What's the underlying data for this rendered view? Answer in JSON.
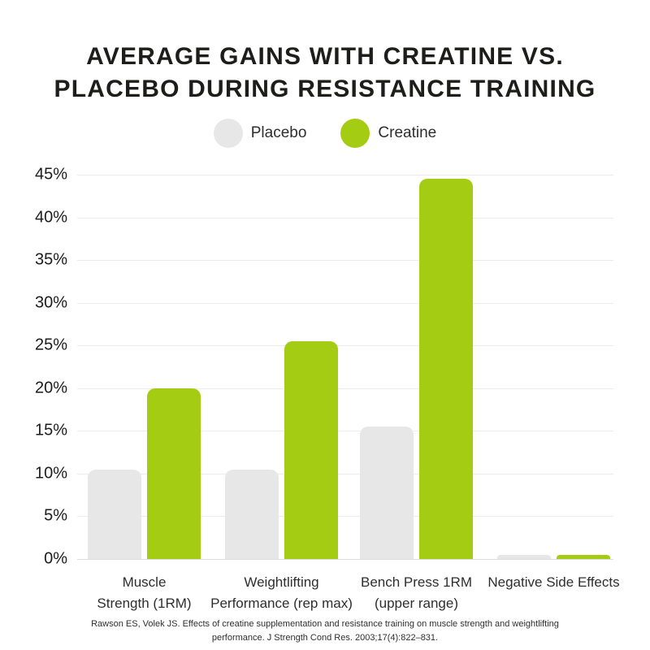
{
  "page": {
    "title": "AVERAGE GAINS WITH CREATINE VS. PLACEBO DURING RESISTANCE TRAINING",
    "citation": "Rawson ES, Volek JS. Effects of creatine supplementation and resistance training on muscle strength and weightlifting performance. J Strength Cond Res. 2003;17(4):822–831."
  },
  "legend": {
    "items": [
      {
        "label": "Placebo",
        "color": "#e7e7e7"
      },
      {
        "label": "Creatine",
        "color": "#a4cc12"
      }
    ]
  },
  "chart_data": {
    "type": "bar",
    "title": "AVERAGE GAINS WITH CREATINE VS. PLACEBO DURING RESISTANCE TRAINING",
    "categories": [
      "Muscle Strength (1RM)",
      "Weightlifting Performance (rep max)",
      "Bench Press 1RM (upper range)",
      "Negative Side Effects"
    ],
    "categories_display": [
      [
        "Muscle",
        "Strength (1RM)"
      ],
      [
        "Weightlifting",
        "Performance (rep max)"
      ],
      [
        "Bench Press 1RM",
        "(upper range)"
      ],
      [
        "Negative Side Effects"
      ]
    ],
    "series": [
      {
        "name": "Placebo",
        "color": "#e7e7e7",
        "values": [
          10.5,
          10.5,
          15.5,
          0.5
        ]
      },
      {
        "name": "Creatine",
        "color": "#a4cc12",
        "values": [
          20,
          25.5,
          44.5,
          0.5
        ]
      }
    ],
    "xlabel": "",
    "ylabel": "",
    "ylim": [
      0,
      45
    ],
    "ytick_step": 5,
    "ytick_suffix": "%",
    "grid": true,
    "legend_position": "top",
    "source": "Rawson ES, Volek JS. Effects of creatine supplementation and resistance training on muscle strength and weightlifting performance. J Strength Cond Res. 2003;17(4):822–831."
  },
  "colors": {
    "creatine_green": "#a4cc12",
    "placebo_gray": "#e7e7e7",
    "title_text": "#1d1d1b",
    "gridline": "#ececec"
  }
}
